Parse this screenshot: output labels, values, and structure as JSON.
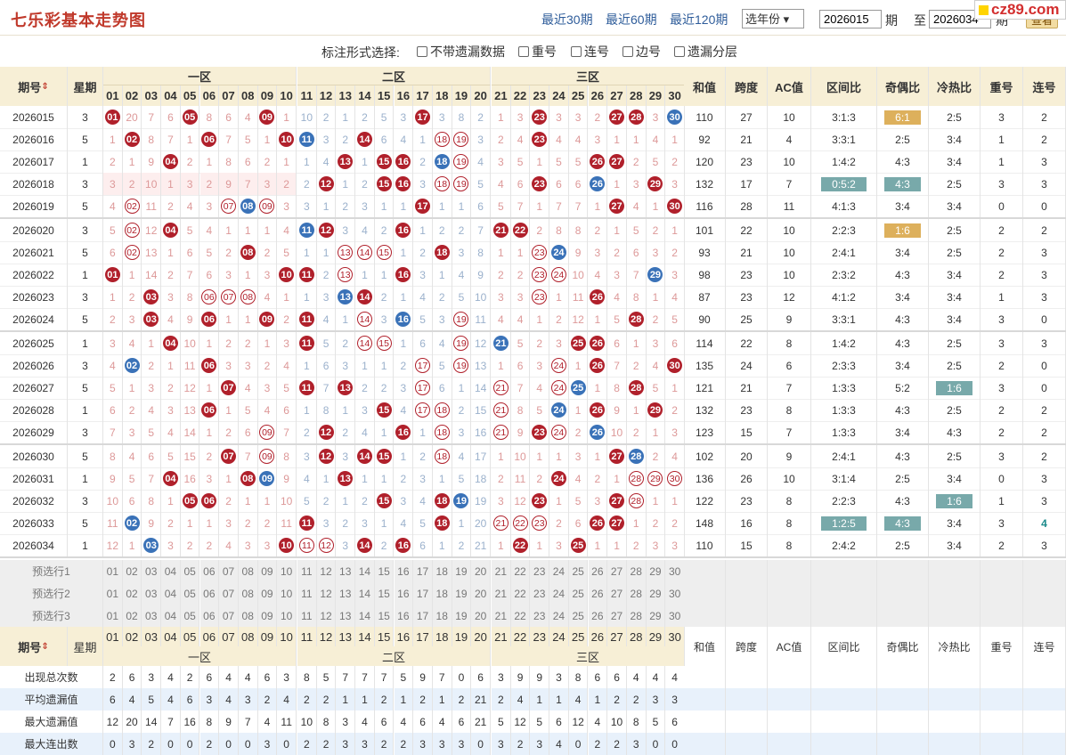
{
  "header": {
    "title": "七乐彩基本走势图",
    "links": [
      "最近30期",
      "最近60期",
      "最近120期"
    ],
    "year_select": "选年份",
    "from_issue": "2026015",
    "issue_label": "期",
    "to_label": "至",
    "to_issue": "2026034",
    "issue_label2": "期",
    "query_button": "查看",
    "logo": "cz89.com"
  },
  "options": {
    "label": "标注形式选择:",
    "items": [
      "不带遗漏数据",
      "重号",
      "连号",
      "边号",
      "遗漏分层"
    ]
  },
  "columns": {
    "issue": "期号",
    "week": "星期",
    "zone1": "一区",
    "zone2": "二区",
    "zone3": "三区",
    "sum": "和值",
    "span": "跨度",
    "ac": "AC值",
    "ratio": "区间比",
    "oddeven": "奇偶比",
    "hotcold": "冷热比",
    "repeat": "重号",
    "consec": "连号",
    "numbers": [
      "01",
      "02",
      "03",
      "04",
      "05",
      "06",
      "07",
      "08",
      "09",
      "10",
      "11",
      "12",
      "13",
      "14",
      "15",
      "16",
      "17",
      "18",
      "19",
      "20",
      "21",
      "22",
      "23",
      "24",
      "25",
      "26",
      "27",
      "28",
      "29",
      "30"
    ]
  },
  "rows": [
    {
      "issue": "2026015",
      "week": "3",
      "cells": [
        [
          "r"
        ],
        20,
        7,
        6,
        [
          "r"
        ],
        8,
        6,
        4,
        [
          "r"
        ],
        1,
        10,
        2,
        1,
        2,
        5,
        3,
        [
          "r"
        ],
        3,
        8,
        2,
        1,
        3,
        [
          "r"
        ],
        3,
        3,
        2,
        [
          "r"
        ],
        [
          "r"
        ],
        3,
        [
          "b"
        ]
      ],
      "sum": "110",
      "span": "27",
      "ac": "10",
      "ratio": "3:1:3",
      "oddeven": "6:1",
      "oe_hl": "o",
      "hotcold": "2:5",
      "hc_hl": "",
      "repeat": "3",
      "consec": "2"
    },
    {
      "issue": "2026016",
      "week": "5",
      "cells": [
        1,
        [
          "r"
        ],
        8,
        7,
        1,
        [
          "r"
        ],
        7,
        5,
        1,
        [
          "r"
        ],
        [
          "b"
        ],
        3,
        2,
        [
          "r"
        ],
        6,
        4,
        1,
        [
          "o"
        ],
        [
          "o"
        ],
        3,
        2,
        4,
        [
          "r"
        ],
        4,
        4,
        3,
        1,
        1,
        4,
        1
      ],
      "sum": "92",
      "span": "21",
      "ac": "4",
      "ratio": "3:3:1",
      "oddeven": "2:5",
      "oe_hl": "",
      "hotcold": "3:4",
      "hc_hl": "",
      "repeat": "1",
      "consec": "2"
    },
    {
      "issue": "2026017",
      "week": "1",
      "cells": [
        2,
        1,
        9,
        [
          "r"
        ],
        2,
        1,
        8,
        6,
        2,
        1,
        1,
        4,
        [
          "r"
        ],
        1,
        [
          "r"
        ],
        [
          "r"
        ],
        2,
        [
          "b"
        ],
        [
          "o"
        ],
        4,
        3,
        5,
        1,
        5,
        5,
        [
          "r"
        ],
        [
          "r"
        ],
        2,
        5,
        2
      ],
      "sum": "120",
      "span": "23",
      "ac": "10",
      "ratio": "1:4:2",
      "oddeven": "4:3",
      "oe_hl": "",
      "hotcold": "3:4",
      "hc_hl": "",
      "repeat": "1",
      "consec": "3"
    },
    {
      "issue": "2026018",
      "week": "3",
      "cells": [
        3,
        2,
        10,
        1,
        3,
        2,
        9,
        7,
        3,
        2,
        2,
        [
          "r"
        ],
        1,
        2,
        [
          "r"
        ],
        [
          "r"
        ],
        3,
        [
          "o"
        ],
        [
          "o"
        ],
        5,
        4,
        6,
        [
          "r"
        ],
        6,
        6,
        [
          "b"
        ],
        1,
        3,
        [
          "r"
        ],
        3
      ],
      "sum": "132",
      "span": "17",
      "ac": "7",
      "ratio": "0:5:2",
      "oddeven": "4:3",
      "oe_hl": "b",
      "hotcold": "2:5",
      "hc_hl": "",
      "repeat": "3",
      "consec": "3"
    },
    {
      "issue": "2026019",
      "week": "5",
      "cells": [
        4,
        [
          "o"
        ],
        11,
        2,
        4,
        3,
        [
          "o"
        ],
        [
          "b"
        ],
        [
          "o"
        ],
        3,
        3,
        1,
        2,
        3,
        1,
        1,
        [
          "r"
        ],
        1,
        1,
        6,
        5,
        7,
        1,
        7,
        7,
        1,
        [
          "r"
        ],
        4,
        1,
        [
          "r"
        ]
      ],
      "sum": "116",
      "span": "28",
      "ac": "11",
      "ratio": "4:1:3",
      "oddeven": "3:4",
      "oe_hl": "",
      "hotcold": "3:4",
      "hc_hl": "",
      "repeat": "0",
      "consec": "0"
    },
    {
      "issue": "2026020",
      "week": "3",
      "cells": [
        5,
        [
          "o"
        ],
        12,
        [
          "r"
        ],
        5,
        4,
        1,
        1,
        1,
        4,
        [
          "b"
        ],
        [
          "r"
        ],
        3,
        4,
        2,
        [
          "r"
        ],
        1,
        2,
        2,
        7,
        [
          "r"
        ],
        [
          "r"
        ],
        2,
        8,
        8,
        2,
        1,
        5,
        2,
        1
      ],
      "sum": "101",
      "span": "22",
      "ac": "10",
      "ratio": "2:2:3",
      "oddeven": "1:6",
      "oe_hl": "o",
      "hotcold": "2:5",
      "hc_hl": "",
      "repeat": "2",
      "consec": "2"
    },
    {
      "issue": "2026021",
      "week": "5",
      "cells": [
        6,
        [
          "o"
        ],
        13,
        1,
        6,
        5,
        2,
        [
          "r"
        ],
        2,
        5,
        1,
        1,
        [
          "o"
        ],
        [
          "o"
        ],
        [
          "o"
        ],
        1,
        2,
        [
          "r"
        ],
        3,
        8,
        1,
        1,
        [
          "o"
        ],
        [
          "b"
        ],
        9,
        3,
        2,
        6,
        3,
        2
      ],
      "sum": "93",
      "span": "21",
      "ac": "10",
      "ratio": "2:4:1",
      "oddeven": "3:4",
      "oe_hl": "",
      "hotcold": "2:5",
      "hc_hl": "",
      "repeat": "2",
      "consec": "3"
    },
    {
      "issue": "2026022",
      "week": "1",
      "cells": [
        [
          "r"
        ],
        1,
        14,
        2,
        7,
        6,
        3,
        1,
        3,
        [
          "r"
        ],
        [
          "r"
        ],
        2,
        [
          "o"
        ],
        1,
        1,
        [
          "r"
        ],
        3,
        1,
        4,
        9,
        2,
        2,
        [
          "o"
        ],
        [
          "o"
        ],
        10,
        4,
        3,
        7,
        [
          "b"
        ],
        3
      ],
      "sum": "98",
      "span": "23",
      "ac": "10",
      "ratio": "2:3:2",
      "oddeven": "4:3",
      "oe_hl": "",
      "hotcold": "3:4",
      "hc_hl": "",
      "repeat": "2",
      "consec": "3"
    },
    {
      "issue": "2026023",
      "week": "3",
      "cells": [
        1,
        2,
        [
          "r"
        ],
        3,
        8,
        [
          "o"
        ],
        [
          "o"
        ],
        [
          "o"
        ],
        4,
        1,
        1,
        3,
        [
          "b"
        ],
        [
          "r"
        ],
        2,
        1,
        4,
        2,
        5,
        10,
        3,
        3,
        [
          "o"
        ],
        1,
        11,
        [
          "r"
        ],
        4,
        8,
        1,
        4
      ],
      "sum": "87",
      "span": "23",
      "ac": "12",
      "ratio": "4:1:2",
      "oddeven": "3:4",
      "oe_hl": "",
      "hotcold": "3:4",
      "hc_hl": "",
      "repeat": "1",
      "consec": "3"
    },
    {
      "issue": "2026024",
      "week": "5",
      "cells": [
        2,
        3,
        [
          "r"
        ],
        4,
        9,
        [
          "r"
        ],
        1,
        1,
        [
          "r"
        ],
        2,
        [
          "r"
        ],
        4,
        1,
        [
          "o"
        ],
        3,
        [
          "b"
        ],
        5,
        3,
        [
          "o"
        ],
        11,
        4,
        4,
        1,
        2,
        12,
        1,
        5,
        [
          "r"
        ],
        2,
        5
      ],
      "sum": "90",
      "span": "25",
      "ac": "9",
      "ratio": "3:3:1",
      "oddeven": "4:3",
      "oe_hl": "",
      "hotcold": "3:4",
      "hc_hl": "",
      "repeat": "3",
      "consec": "0"
    },
    {
      "issue": "2026025",
      "week": "1",
      "cells": [
        3,
        4,
        1,
        [
          "r"
        ],
        10,
        1,
        2,
        2,
        1,
        3,
        [
          "r"
        ],
        5,
        2,
        [
          "o"
        ],
        [
          "o"
        ],
        1,
        6,
        4,
        [
          "o"
        ],
        12,
        [
          "b"
        ],
        5,
        2,
        3,
        [
          "r"
        ],
        [
          "r"
        ],
        6,
        1,
        3,
        6
      ],
      "sum": "114",
      "span": "22",
      "ac": "8",
      "ratio": "1:4:2",
      "oddeven": "4:3",
      "oe_hl": "",
      "hotcold": "2:5",
      "hc_hl": "",
      "repeat": "3",
      "consec": "3"
    },
    {
      "issue": "2026026",
      "week": "3",
      "cells": [
        4,
        [
          "b"
        ],
        2,
        1,
        11,
        [
          "r"
        ],
        3,
        3,
        2,
        4,
        1,
        6,
        3,
        1,
        1,
        2,
        [
          "o"
        ],
        5,
        [
          "o"
        ],
        13,
        1,
        6,
        3,
        [
          "o"
        ],
        1,
        [
          "r"
        ],
        7,
        2,
        4,
        [
          "r"
        ]
      ],
      "sum": "135",
      "span": "24",
      "ac": "6",
      "ratio": "2:3:3",
      "oddeven": "3:4",
      "oe_hl": "",
      "hotcold": "2:5",
      "hc_hl": "",
      "repeat": "2",
      "consec": "0"
    },
    {
      "issue": "2026027",
      "week": "5",
      "cells": [
        5,
        1,
        3,
        2,
        12,
        1,
        [
          "r"
        ],
        4,
        3,
        5,
        [
          "r"
        ],
        7,
        [
          "r"
        ],
        2,
        2,
        3,
        [
          "o"
        ],
        6,
        1,
        14,
        [
          "o"
        ],
        7,
        4,
        [
          "o"
        ],
        [
          "b"
        ],
        1,
        8,
        [
          "r"
        ],
        5,
        1
      ],
      "sum": "121",
      "span": "21",
      "ac": "7",
      "ratio": "1:3:3",
      "oddeven": "5:2",
      "oe_hl": "",
      "hotcold": "1:6",
      "hc_hl": "b",
      "repeat": "3",
      "consec": "0"
    },
    {
      "issue": "2026028",
      "week": "1",
      "cells": [
        6,
        2,
        4,
        3,
        13,
        [
          "r"
        ],
        1,
        5,
        4,
        6,
        1,
        8,
        1,
        3,
        [
          "r"
        ],
        4,
        [
          "o"
        ],
        [
          "o"
        ],
        2,
        15,
        [
          "o"
        ],
        8,
        5,
        [
          "b"
        ],
        1,
        [
          "r"
        ],
        9,
        1,
        [
          "r"
        ],
        2
      ],
      "sum": "132",
      "span": "23",
      "ac": "8",
      "ratio": "1:3:3",
      "oddeven": "4:3",
      "oe_hl": "",
      "hotcold": "2:5",
      "hc_hl": "",
      "repeat": "2",
      "consec": "2"
    },
    {
      "issue": "2026029",
      "week": "3",
      "cells": [
        7,
        3,
        5,
        4,
        14,
        1,
        2,
        6,
        [
          "o"
        ],
        7,
        2,
        [
          "r"
        ],
        2,
        4,
        1,
        [
          "r"
        ],
        1,
        [
          "o"
        ],
        3,
        16,
        [
          "o"
        ],
        9,
        [
          "r"
        ],
        [
          "o"
        ],
        2,
        [
          "b"
        ],
        10,
        2,
        1,
        3
      ],
      "sum": "123",
      "span": "15",
      "ac": "7",
      "ratio": "1:3:3",
      "oddeven": "3:4",
      "oe_hl": "",
      "hotcold": "4:3",
      "hc_hl": "",
      "repeat": "2",
      "consec": "2"
    },
    {
      "issue": "2026030",
      "week": "5",
      "cells": [
        8,
        4,
        6,
        5,
        15,
        2,
        [
          "r"
        ],
        7,
        [
          "o"
        ],
        8,
        3,
        [
          "r"
        ],
        3,
        [
          "r"
        ],
        [
          "r"
        ],
        1,
        2,
        [
          "o"
        ],
        4,
        17,
        1,
        10,
        1,
        1,
        3,
        1,
        [
          "r"
        ],
        [
          "b"
        ],
        2,
        4
      ],
      "sum": "102",
      "span": "20",
      "ac": "9",
      "ratio": "2:4:1",
      "oddeven": "4:3",
      "oe_hl": "",
      "hotcold": "2:5",
      "hc_hl": "",
      "repeat": "3",
      "consec": "2"
    },
    {
      "issue": "2026031",
      "week": "1",
      "cells": [
        9,
        5,
        7,
        [
          "r"
        ],
        16,
        3,
        1,
        [
          "r"
        ],
        [
          "b"
        ],
        9,
        4,
        1,
        [
          "r"
        ],
        1,
        1,
        2,
        3,
        1,
        5,
        18,
        2,
        11,
        2,
        [
          "r"
        ],
        4,
        2,
        1,
        [
          "o"
        ],
        [
          "o"
        ],
        [
          "o"
        ]
      ],
      "sum": "136",
      "span": "26",
      "ac": "10",
      "ratio": "3:1:4",
      "oddeven": "2:5",
      "oe_hl": "",
      "hotcold": "3:4",
      "hc_hl": "",
      "repeat": "0",
      "consec": "3"
    },
    {
      "issue": "2026032",
      "week": "3",
      "cells": [
        10,
        6,
        8,
        1,
        [
          "r"
        ],
        [
          "r"
        ],
        2,
        1,
        1,
        10,
        5,
        2,
        1,
        2,
        [
          "r"
        ],
        3,
        4,
        [
          "r"
        ],
        [
          "b"
        ],
        19,
        3,
        12,
        [
          "r"
        ],
        1,
        5,
        3,
        [
          "r"
        ],
        [
          "o"
        ],
        1,
        1
      ],
      "sum": "122",
      "span": "23",
      "ac": "8",
      "ratio": "2:2:3",
      "oddeven": "4:3",
      "oe_hl": "",
      "hotcold": "1:6",
      "hc_hl": "b",
      "repeat": "1",
      "consec": "3"
    },
    {
      "issue": "2026033",
      "week": "5",
      "cells": [
        11,
        [
          "b"
        ],
        9,
        2,
        1,
        1,
        3,
        2,
        2,
        11,
        [
          "r"
        ],
        3,
        2,
        3,
        1,
        4,
        5,
        [
          "r"
        ],
        1,
        20,
        [
          "o"
        ],
        [
          "o"
        ],
        [
          "o"
        ],
        2,
        6,
        [
          "r"
        ],
        [
          "r"
        ],
        1,
        2,
        2
      ],
      "sum": "148",
      "span": "16",
      "ac": "8",
      "ratio": "1:2:5",
      "oddeven": "4:3",
      "oe_hl": "b",
      "hotcold": "3:4",
      "hc_hl": "",
      "repeat": "3",
      "consec": "4"
    },
    {
      "issue": "2026034",
      "week": "1",
      "cells": [
        12,
        1,
        [
          "b"
        ],
        3,
        2,
        2,
        4,
        3,
        3,
        [
          "r"
        ],
        [
          "o"
        ],
        [
          "o"
        ],
        3,
        [
          "r"
        ],
        2,
        [
          "r"
        ],
        6,
        1,
        2,
        21,
        1,
        [
          "r"
        ],
        1,
        3,
        [
          "r"
        ],
        1,
        1,
        2,
        3,
        3
      ],
      "sum": "110",
      "span": "15",
      "ac": "8",
      "ratio": "2:4:2",
      "oddeven": "2:5",
      "oe_hl": "",
      "hotcold": "3:4",
      "hc_hl": "",
      "repeat": "2",
      "consec": "3"
    }
  ],
  "preselect": [
    "预选行1",
    "预选行2",
    "预选行3"
  ],
  "stats": [
    {
      "label": "出现总次数",
      "values": [
        "2",
        "6",
        "3",
        "4",
        "2",
        "6",
        "4",
        "4",
        "6",
        "3",
        "8",
        "5",
        "7",
        "7",
        "7",
        "5",
        "9",
        "7",
        "0",
        "6",
        "3",
        "9",
        "9",
        "3",
        "8",
        "6",
        "6",
        "4",
        "4",
        "4"
      ]
    },
    {
      "label": "平均遗漏值",
      "values": [
        "6",
        "4",
        "5",
        "4",
        "6",
        "3",
        "4",
        "3",
        "2",
        "4",
        "2",
        "2",
        "1",
        "1",
        "2",
        "1",
        "2",
        "1",
        "2",
        "21",
        "2",
        "4",
        "1",
        "1",
        "4",
        "1",
        "2",
        "2",
        "3",
        "3"
      ]
    },
    {
      "label": "最大遗漏值",
      "values": [
        "12",
        "20",
        "14",
        "7",
        "16",
        "8",
        "9",
        "7",
        "4",
        "11",
        "10",
        "8",
        "3",
        "4",
        "6",
        "4",
        "6",
        "4",
        "6",
        "21",
        "5",
        "12",
        "5",
        "6",
        "12",
        "4",
        "10",
        "8",
        "5",
        "6"
      ]
    },
    {
      "label": "最大连出数",
      "values": [
        "0",
        "3",
        "2",
        "0",
        "0",
        "2",
        "0",
        "0",
        "3",
        "0",
        "2",
        "2",
        "3",
        "3",
        "2",
        "2",
        "3",
        "3",
        "3",
        "0",
        "3",
        "2",
        "3",
        "4",
        "0",
        "2",
        "2",
        "3",
        "0",
        "0"
      ]
    }
  ],
  "colors": {
    "red": "#b0202b",
    "blue": "#3a72b8",
    "header_bg": "#f7efd6",
    "orange_badge": "#ddb05c",
    "teal_badge": "#78a9aa"
  }
}
